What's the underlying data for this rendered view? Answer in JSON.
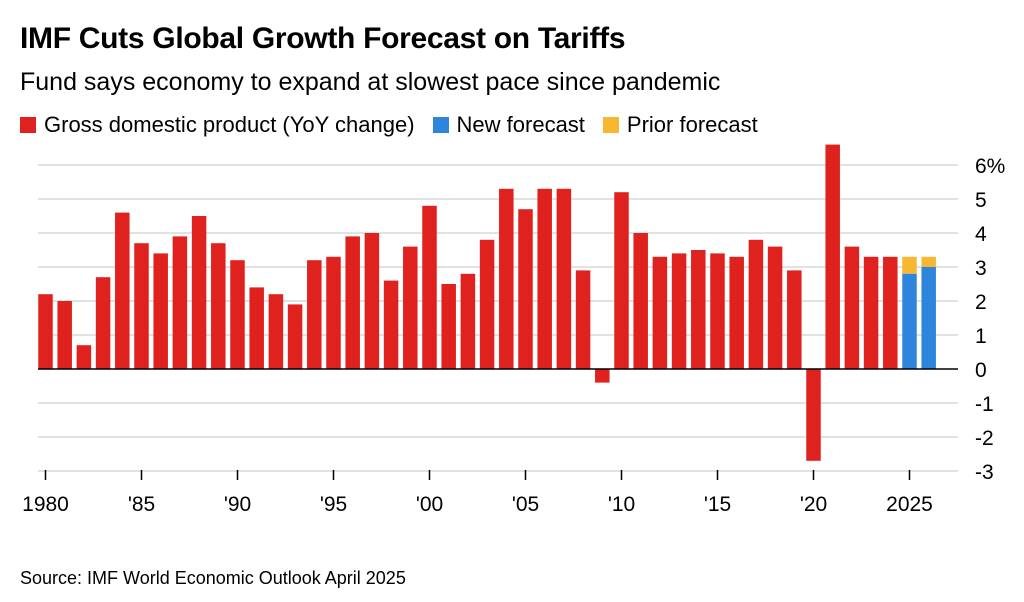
{
  "title": "IMF Cuts Global Growth Forecast on Tariffs",
  "subtitle": "Fund says economy to expand at slowest pace since pandemic",
  "source": "Source: IMF World Economic Outlook April 2025",
  "legend": [
    {
      "label": "Gross domestic product (YoY change)",
      "color": "#e0221f"
    },
    {
      "label": "New forecast",
      "color": "#2e85dc"
    },
    {
      "label": "Prior forecast",
      "color": "#f7b731"
    }
  ],
  "chart_data": {
    "type": "bar",
    "ylim": [
      -3,
      6.7
    ],
    "yticks": [
      {
        "value": 6,
        "label": "6%"
      },
      {
        "value": 5,
        "label": "5"
      },
      {
        "value": 4,
        "label": "4"
      },
      {
        "value": 3,
        "label": "3"
      },
      {
        "value": 2,
        "label": "2"
      },
      {
        "value": 1,
        "label": "1"
      },
      {
        "value": 0,
        "label": "0"
      },
      {
        "value": -1,
        "label": "-1"
      },
      {
        "value": -2,
        "label": "-2"
      },
      {
        "value": -3,
        "label": "-3"
      }
    ],
    "xticks": [
      {
        "year": 1980,
        "label": "1980"
      },
      {
        "year": 1985,
        "label": "'85"
      },
      {
        "year": 1990,
        "label": "'90"
      },
      {
        "year": 1995,
        "label": "'95"
      },
      {
        "year": 2000,
        "label": "'00"
      },
      {
        "year": 2005,
        "label": "'05"
      },
      {
        "year": 2010,
        "label": "'10"
      },
      {
        "year": 2015,
        "label": "'15"
      },
      {
        "year": 2020,
        "label": "'20"
      },
      {
        "year": 2025,
        "label": "2025"
      }
    ],
    "grid": true,
    "series": [
      {
        "name": "Gross domestic product (YoY change)",
        "color": "#e0221f",
        "x": [
          1980,
          1981,
          1982,
          1983,
          1984,
          1985,
          1986,
          1987,
          1988,
          1989,
          1990,
          1991,
          1992,
          1993,
          1994,
          1995,
          1996,
          1997,
          1998,
          1999,
          2000,
          2001,
          2002,
          2003,
          2004,
          2005,
          2006,
          2007,
          2008,
          2009,
          2010,
          2011,
          2012,
          2013,
          2014,
          2015,
          2016,
          2017,
          2018,
          2019,
          2020,
          2021,
          2022,
          2023,
          2024
        ],
        "values": [
          2.2,
          2.0,
          0.7,
          2.7,
          4.6,
          3.7,
          3.4,
          3.9,
          4.5,
          3.7,
          3.2,
          2.4,
          2.2,
          1.9,
          3.2,
          3.3,
          3.9,
          4.0,
          2.6,
          3.6,
          4.8,
          2.5,
          2.8,
          3.8,
          5.3,
          4.7,
          5.3,
          5.3,
          2.9,
          -0.4,
          5.2,
          4.0,
          3.3,
          3.4,
          3.5,
          3.4,
          3.3,
          3.8,
          3.6,
          2.9,
          -2.7,
          6.6,
          3.6,
          3.3,
          3.3
        ]
      },
      {
        "name": "New forecast",
        "color": "#2e85dc",
        "x": [
          2025,
          2026
        ],
        "values": [
          2.8,
          3.0
        ]
      },
      {
        "name": "Prior forecast",
        "color": "#f7b731",
        "x": [
          2025,
          2026
        ],
        "values": [
          3.3,
          3.3
        ]
      }
    ]
  }
}
